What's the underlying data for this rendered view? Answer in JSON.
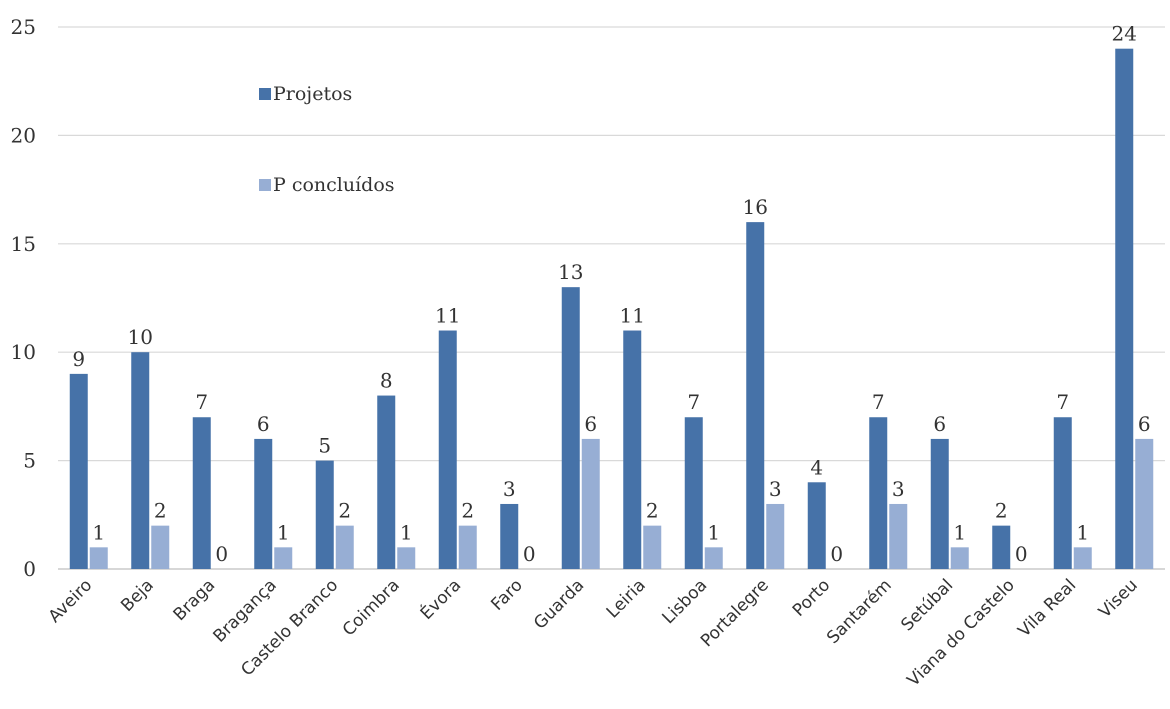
{
  "chart_data": {
    "type": "bar",
    "categories": [
      "Aveiro",
      "Beja",
      "Braga",
      "Bragança",
      "Castelo Branco",
      "Coimbra",
      "Évora",
      "Faro",
      "Guarda",
      "Leiria",
      "Lisboa",
      "Portalegre",
      "Porto",
      "Santarém",
      "Setúbal",
      "Viana do Castelo",
      "Vila Real",
      "Viseu"
    ],
    "series": [
      {
        "name": "Projetos",
        "color": "#4672a8",
        "values": [
          9,
          10,
          7,
          6,
          5,
          8,
          11,
          3,
          13,
          11,
          7,
          16,
          4,
          7,
          6,
          2,
          7,
          24
        ]
      },
      {
        "name": "P concluídos",
        "color": "#97aed4",
        "values": [
          1,
          2,
          0,
          1,
          2,
          1,
          2,
          0,
          6,
          2,
          1,
          3,
          0,
          3,
          1,
          0,
          1,
          6
        ]
      }
    ],
    "ylim": [
      0,
      25
    ],
    "yticks": [
      0,
      5,
      10,
      15,
      20,
      25
    ],
    "grid": true,
    "legend_position": "top-left",
    "data_labels": true
  }
}
